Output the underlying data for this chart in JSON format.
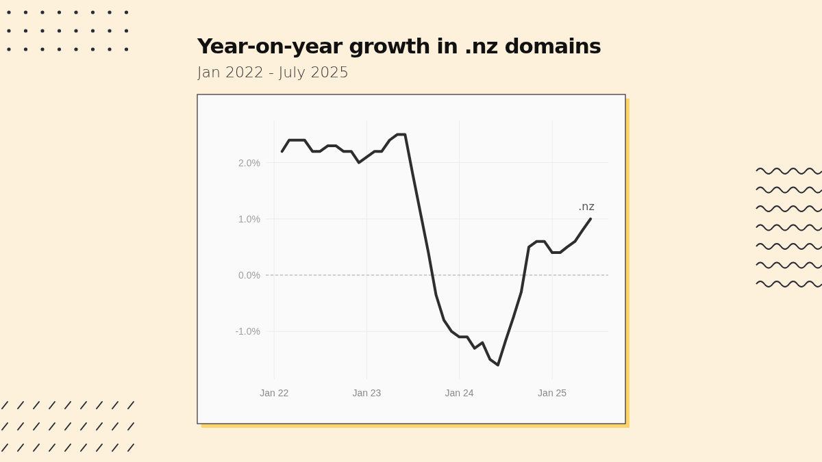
{
  "chart_data": {
    "type": "line",
    "title": "Year-on-year growth in .nz domains",
    "subtitle": "Jan 2022 - July 2025",
    "x": [
      "2022-02",
      "2022-03",
      "2022-04",
      "2022-05",
      "2022-06",
      "2022-07",
      "2022-08",
      "2022-09",
      "2022-10",
      "2022-11",
      "2022-12",
      "2023-01",
      "2023-02",
      "2023-03",
      "2023-04",
      "2023-05",
      "2023-06",
      "2023-07",
      "2023-08",
      "2023-09",
      "2023-10",
      "2023-11",
      "2023-12",
      "2024-01",
      "2024-02",
      "2024-03",
      "2024-04",
      "2024-05",
      "2024-06",
      "2024-07",
      "2024-08",
      "2024-09",
      "2024-10",
      "2024-11",
      "2024-12",
      "2025-01",
      "2025-02",
      "2025-03",
      "2025-04",
      "2025-05",
      "2025-06"
    ],
    "series": [
      {
        "name": ".nz",
        "color": "#2e2e2e",
        "values": [
          2.2,
          2.4,
          2.4,
          2.4,
          2.2,
          2.2,
          2.3,
          2.3,
          2.2,
          2.2,
          2.0,
          2.1,
          2.2,
          2.2,
          2.4,
          2.5,
          2.5,
          1.8,
          1.1,
          0.4,
          -0.35,
          -0.8,
          -1.0,
          -1.1,
          -1.1,
          -1.3,
          -1.2,
          -1.5,
          -1.6,
          -1.17,
          -0.75,
          -0.3,
          0.5,
          0.6,
          0.6,
          0.4,
          0.4,
          0.5,
          0.6,
          0.8,
          1.0
        ]
      }
    ],
    "xlim": [
      "2021-11-29",
      "2025-08-10"
    ],
    "xticks": [
      {
        "value": "2022-01",
        "label": "Jan 22"
      },
      {
        "value": "2023-01",
        "label": "Jan 23"
      },
      {
        "value": "2024-01",
        "label": "Jan 24"
      },
      {
        "value": "2025-01",
        "label": "Jan 25"
      }
    ],
    "ylim": [
      -1.85,
      2.75
    ],
    "yticks": [
      {
        "value": -1,
        "label": "-1.0%"
      },
      {
        "value": 0,
        "label": "0.0%"
      },
      {
        "value": 1,
        "label": "1.0%"
      },
      {
        "value": 2,
        "label": "2.0%"
      }
    ],
    "ref_lines": [
      {
        "axis": "y",
        "value": 0,
        "color": "#aaaaaa",
        "line_style": "dashed"
      }
    ],
    "grid": true,
    "marker": "none",
    "line_style": "solid"
  }
}
